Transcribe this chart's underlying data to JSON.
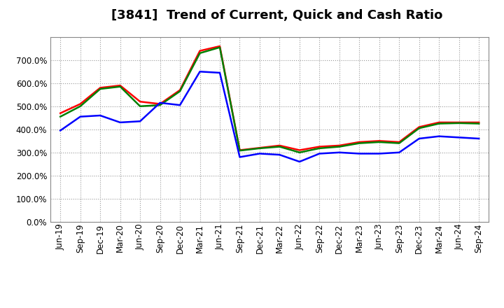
{
  "title": "[3841]  Trend of Current, Quick and Cash Ratio",
  "labels": [
    "Jun-19",
    "Sep-19",
    "Dec-19",
    "Mar-20",
    "Jun-20",
    "Sep-20",
    "Dec-20",
    "Mar-21",
    "Jun-21",
    "Sep-21",
    "Dec-21",
    "Mar-22",
    "Jun-22",
    "Sep-22",
    "Dec-22",
    "Mar-23",
    "Jun-23",
    "Sep-23",
    "Dec-23",
    "Mar-24",
    "Jun-24",
    "Sep-24"
  ],
  "current_ratio": [
    470,
    510,
    580,
    590,
    520,
    510,
    570,
    740,
    760,
    310,
    320,
    330,
    310,
    325,
    330,
    345,
    350,
    345,
    410,
    430,
    430,
    430
  ],
  "quick_ratio": [
    455,
    500,
    575,
    585,
    500,
    505,
    565,
    730,
    755,
    308,
    318,
    325,
    300,
    318,
    325,
    340,
    345,
    340,
    405,
    425,
    427,
    425
  ],
  "cash_ratio": [
    395,
    455,
    460,
    430,
    435,
    515,
    505,
    650,
    645,
    280,
    295,
    290,
    260,
    295,
    300,
    295,
    295,
    300,
    360,
    370,
    365,
    360
  ],
  "current_color": "#FF0000",
  "quick_color": "#008000",
  "cash_color": "#0000FF",
  "ylim": [
    0,
    800
  ],
  "yticks": [
    0,
    100,
    200,
    300,
    400,
    500,
    600,
    700
  ],
  "background_color": "#FFFFFF",
  "grid_color": "#AAAAAA",
  "line_width": 1.8,
  "title_fontsize": 13,
  "tick_fontsize": 8.5,
  "legend_fontsize": 9
}
